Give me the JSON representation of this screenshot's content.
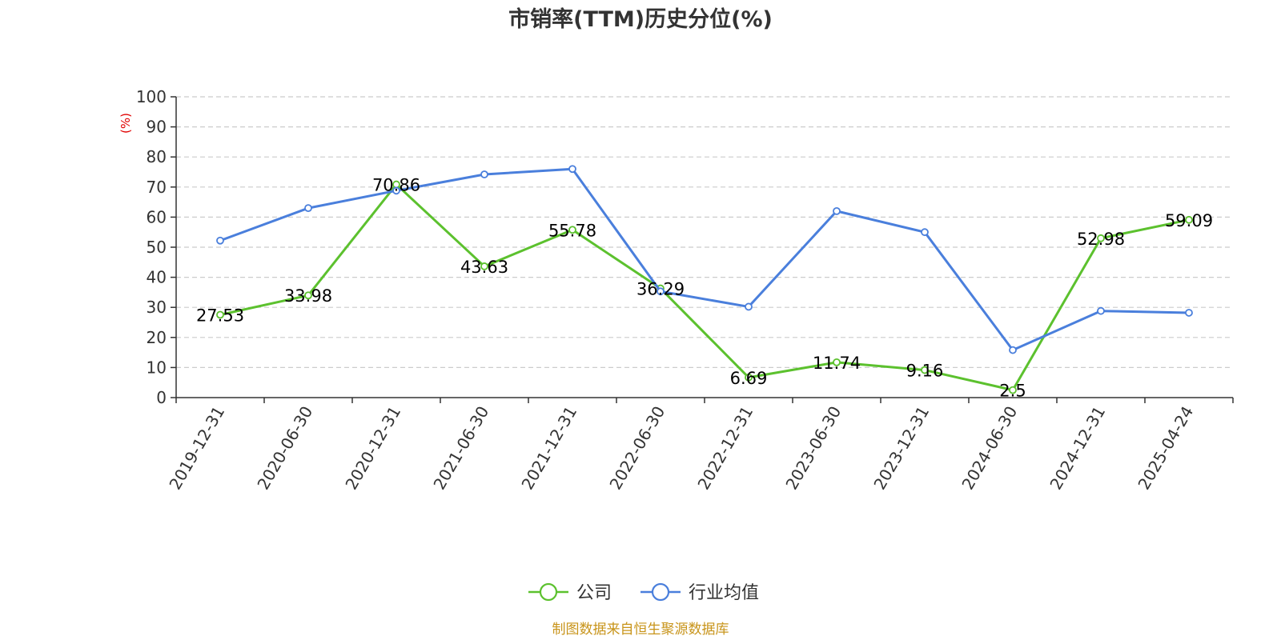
{
  "chart_data": {
    "type": "line",
    "title": "市销率(TTM)历史分位(%)",
    "ylabel": "(%)",
    "xlabel": "",
    "ylim": [
      0,
      100
    ],
    "yticks": [
      0,
      10,
      20,
      30,
      40,
      50,
      60,
      70,
      80,
      90,
      100
    ],
    "categories": [
      "2019-12-31",
      "2020-06-30",
      "2020-12-31",
      "2021-06-30",
      "2021-12-31",
      "2022-06-30",
      "2022-12-31",
      "2023-06-30",
      "2023-12-31",
      "2024-06-30",
      "2024-12-31",
      "2025-04-24"
    ],
    "grid": true,
    "legend_position": "bottom",
    "series": [
      {
        "name": "公司",
        "color": "#5cc12e",
        "values": [
          27.53,
          33.98,
          70.86,
          43.63,
          55.78,
          36.29,
          6.69,
          11.74,
          9.16,
          2.5,
          52.98,
          59.09
        ],
        "labels": [
          "27.53",
          "33.98",
          "70.86",
          "43.63",
          "55.78",
          "36.29",
          "6.69",
          "11.74",
          "9.16",
          "2.5",
          "52.98",
          "59.09"
        ]
      },
      {
        "name": "行业均值",
        "color": "#4a7fdc",
        "values": [
          52.2,
          63.0,
          68.8,
          74.2,
          76.0,
          35.3,
          30.2,
          62.0,
          55.0,
          15.8,
          28.8,
          28.2
        ]
      }
    ]
  },
  "footer": {
    "source_text": "制图数据来自恒生聚源数据库",
    "source_color": "#c8941a"
  },
  "colors": {
    "axis": "#333333",
    "grid": "#cccccc",
    "ylabel": "#e00000"
  }
}
